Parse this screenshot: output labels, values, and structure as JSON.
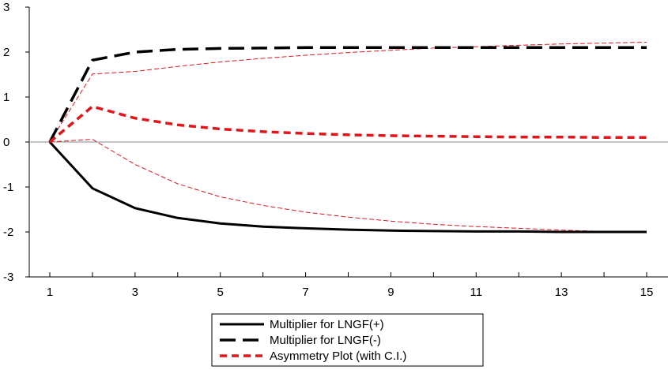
{
  "chart_data": {
    "type": "line",
    "title": "",
    "xlabel": "",
    "ylabel": "",
    "x": [
      1,
      2,
      3,
      4,
      5,
      6,
      7,
      8,
      9,
      10,
      11,
      12,
      13,
      14,
      15
    ],
    "xtick_labels": [
      "1",
      "3",
      "5",
      "7",
      "9",
      "11",
      "13",
      "15"
    ],
    "xticks": [
      1,
      3,
      5,
      7,
      9,
      11,
      13,
      15
    ],
    "ylim": [
      -3,
      3
    ],
    "yticks": [
      -3,
      -2,
      -1,
      0,
      1,
      2,
      3
    ],
    "ytick_labels": [
      "-3",
      "-2",
      "-1",
      "0",
      "1",
      "2",
      "3"
    ],
    "zero_line": true,
    "grid": false,
    "legend_position": "bottom-center",
    "series": [
      {
        "name": "Multiplier for LNGF(+)",
        "color": "#000000",
        "style": "solid",
        "in_legend": true,
        "values": [
          0,
          -1.03,
          -1.47,
          -1.69,
          -1.81,
          -1.88,
          -1.92,
          -1.95,
          -1.97,
          -1.98,
          -1.99,
          -1.99,
          -2.0,
          -2.0,
          -2.0
        ]
      },
      {
        "name": "Multiplier for LNGF(-)",
        "color": "#000000",
        "style": "long-dash",
        "in_legend": true,
        "values": [
          0,
          1.82,
          2.0,
          2.06,
          2.08,
          2.09,
          2.1,
          2.1,
          2.1,
          2.1,
          2.1,
          2.1,
          2.1,
          2.1,
          2.1
        ]
      },
      {
        "name": "Asymmetry Plot (with C.I.)",
        "color": "#e0161b",
        "style": "short-dash",
        "in_legend": true,
        "values": [
          0,
          0.79,
          0.53,
          0.38,
          0.29,
          0.23,
          0.19,
          0.16,
          0.14,
          0.13,
          0.12,
          0.11,
          0.11,
          0.1,
          0.1
        ]
      },
      {
        "name": "",
        "color": "#e0161b",
        "style": "thin-dash",
        "in_legend": false,
        "values": [
          0,
          1.51,
          1.57,
          1.68,
          1.78,
          1.86,
          1.93,
          1.99,
          2.04,
          2.09,
          2.12,
          2.15,
          2.18,
          2.2,
          2.22
        ]
      },
      {
        "name": "",
        "color": "#e0161b",
        "style": "thin-dash",
        "in_legend": false,
        "values": [
          0,
          0.06,
          -0.5,
          -0.93,
          -1.22,
          -1.41,
          -1.56,
          -1.67,
          -1.76,
          -1.83,
          -1.88,
          -1.92,
          -1.96,
          -1.99,
          -2.02
        ]
      }
    ]
  }
}
